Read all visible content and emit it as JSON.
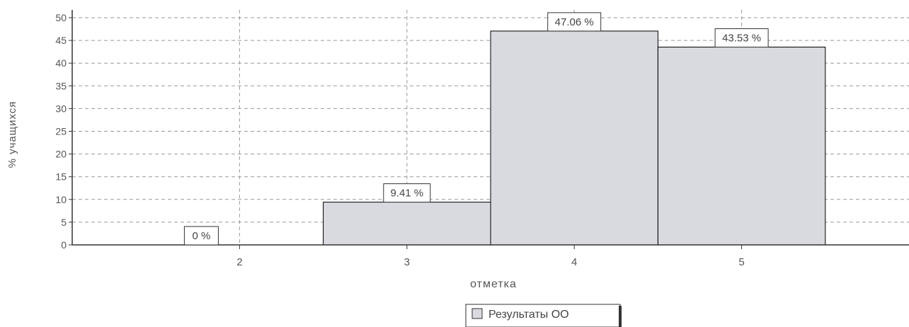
{
  "chart_data": {
    "type": "bar",
    "title": "",
    "xlabel": "отметка",
    "ylabel": "% учащихся",
    "categories": [
      "2",
      "3",
      "4",
      "5"
    ],
    "series": [
      {
        "name": "Результаты ОО",
        "values": [
          0,
          9.41,
          47.06,
          43.53
        ],
        "data_labels": [
          "0 %",
          "9.41 %",
          "47.06 %",
          "43.53 %"
        ]
      }
    ],
    "ylim": [
      0,
      50
    ],
    "yticks": [
      "0",
      "5",
      "10",
      "15",
      "20",
      "25",
      "30",
      "35",
      "40",
      "45",
      "50"
    ],
    "xlim": [
      1,
      6
    ],
    "grid": true,
    "legend_position": "bottom"
  },
  "colors": {
    "bar_fill": "#d9d9e0",
    "bar_stroke": "#000000",
    "grid": "#9a9a9a",
    "text": "#555555",
    "legend_swatch": "#d9d9e0"
  }
}
